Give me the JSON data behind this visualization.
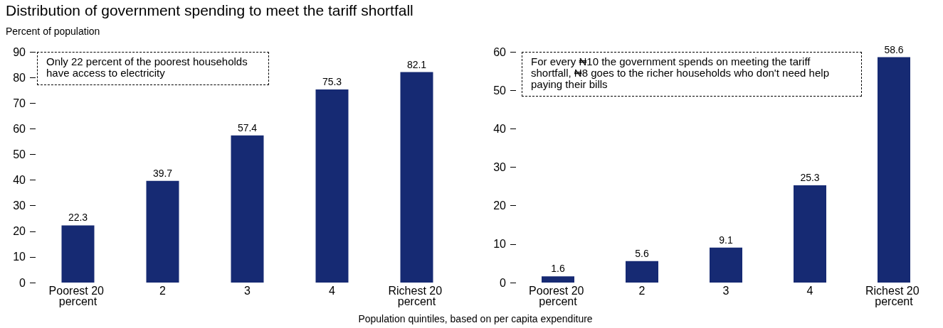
{
  "chart_data": [
    {
      "type": "bar",
      "title": "Distribution of government spending to meet the tariff shortfall",
      "ylabel": "Percent of population",
      "xlabel": "Population quintiles, based on per capita expenditure",
      "categories": [
        "Poorest 20 percent",
        "2",
        "3",
        "4",
        "Richest 20 percent"
      ],
      "values": [
        22.3,
        39.7,
        57.4,
        75.3,
        82.1
      ],
      "color": "#162a73",
      "data_labels": true,
      "ylim": [
        0,
        90
      ],
      "yticks": [
        0,
        10,
        20,
        30,
        40,
        50,
        60,
        70,
        80,
        90
      ],
      "grid": false,
      "annotations": [
        "Only 22 percent of the poorest households have access to electricity"
      ]
    },
    {
      "type": "bar",
      "categories": [
        "Poorest 20 percent",
        "2",
        "3",
        "4",
        "Richest 20 percent"
      ],
      "values": [
        1.6,
        5.6,
        9.1,
        25.3,
        58.6
      ],
      "color": "#162a73",
      "data_labels": true,
      "ylim": [
        0,
        60
      ],
      "yticks": [
        0,
        10,
        20,
        30,
        40,
        50,
        60
      ],
      "grid": false,
      "annotations": [
        "For every ₦10 the government spends on meeting the tariff shortfall, ₦8 goes to the richer households who don't need help paying their bills"
      ]
    }
  ]
}
